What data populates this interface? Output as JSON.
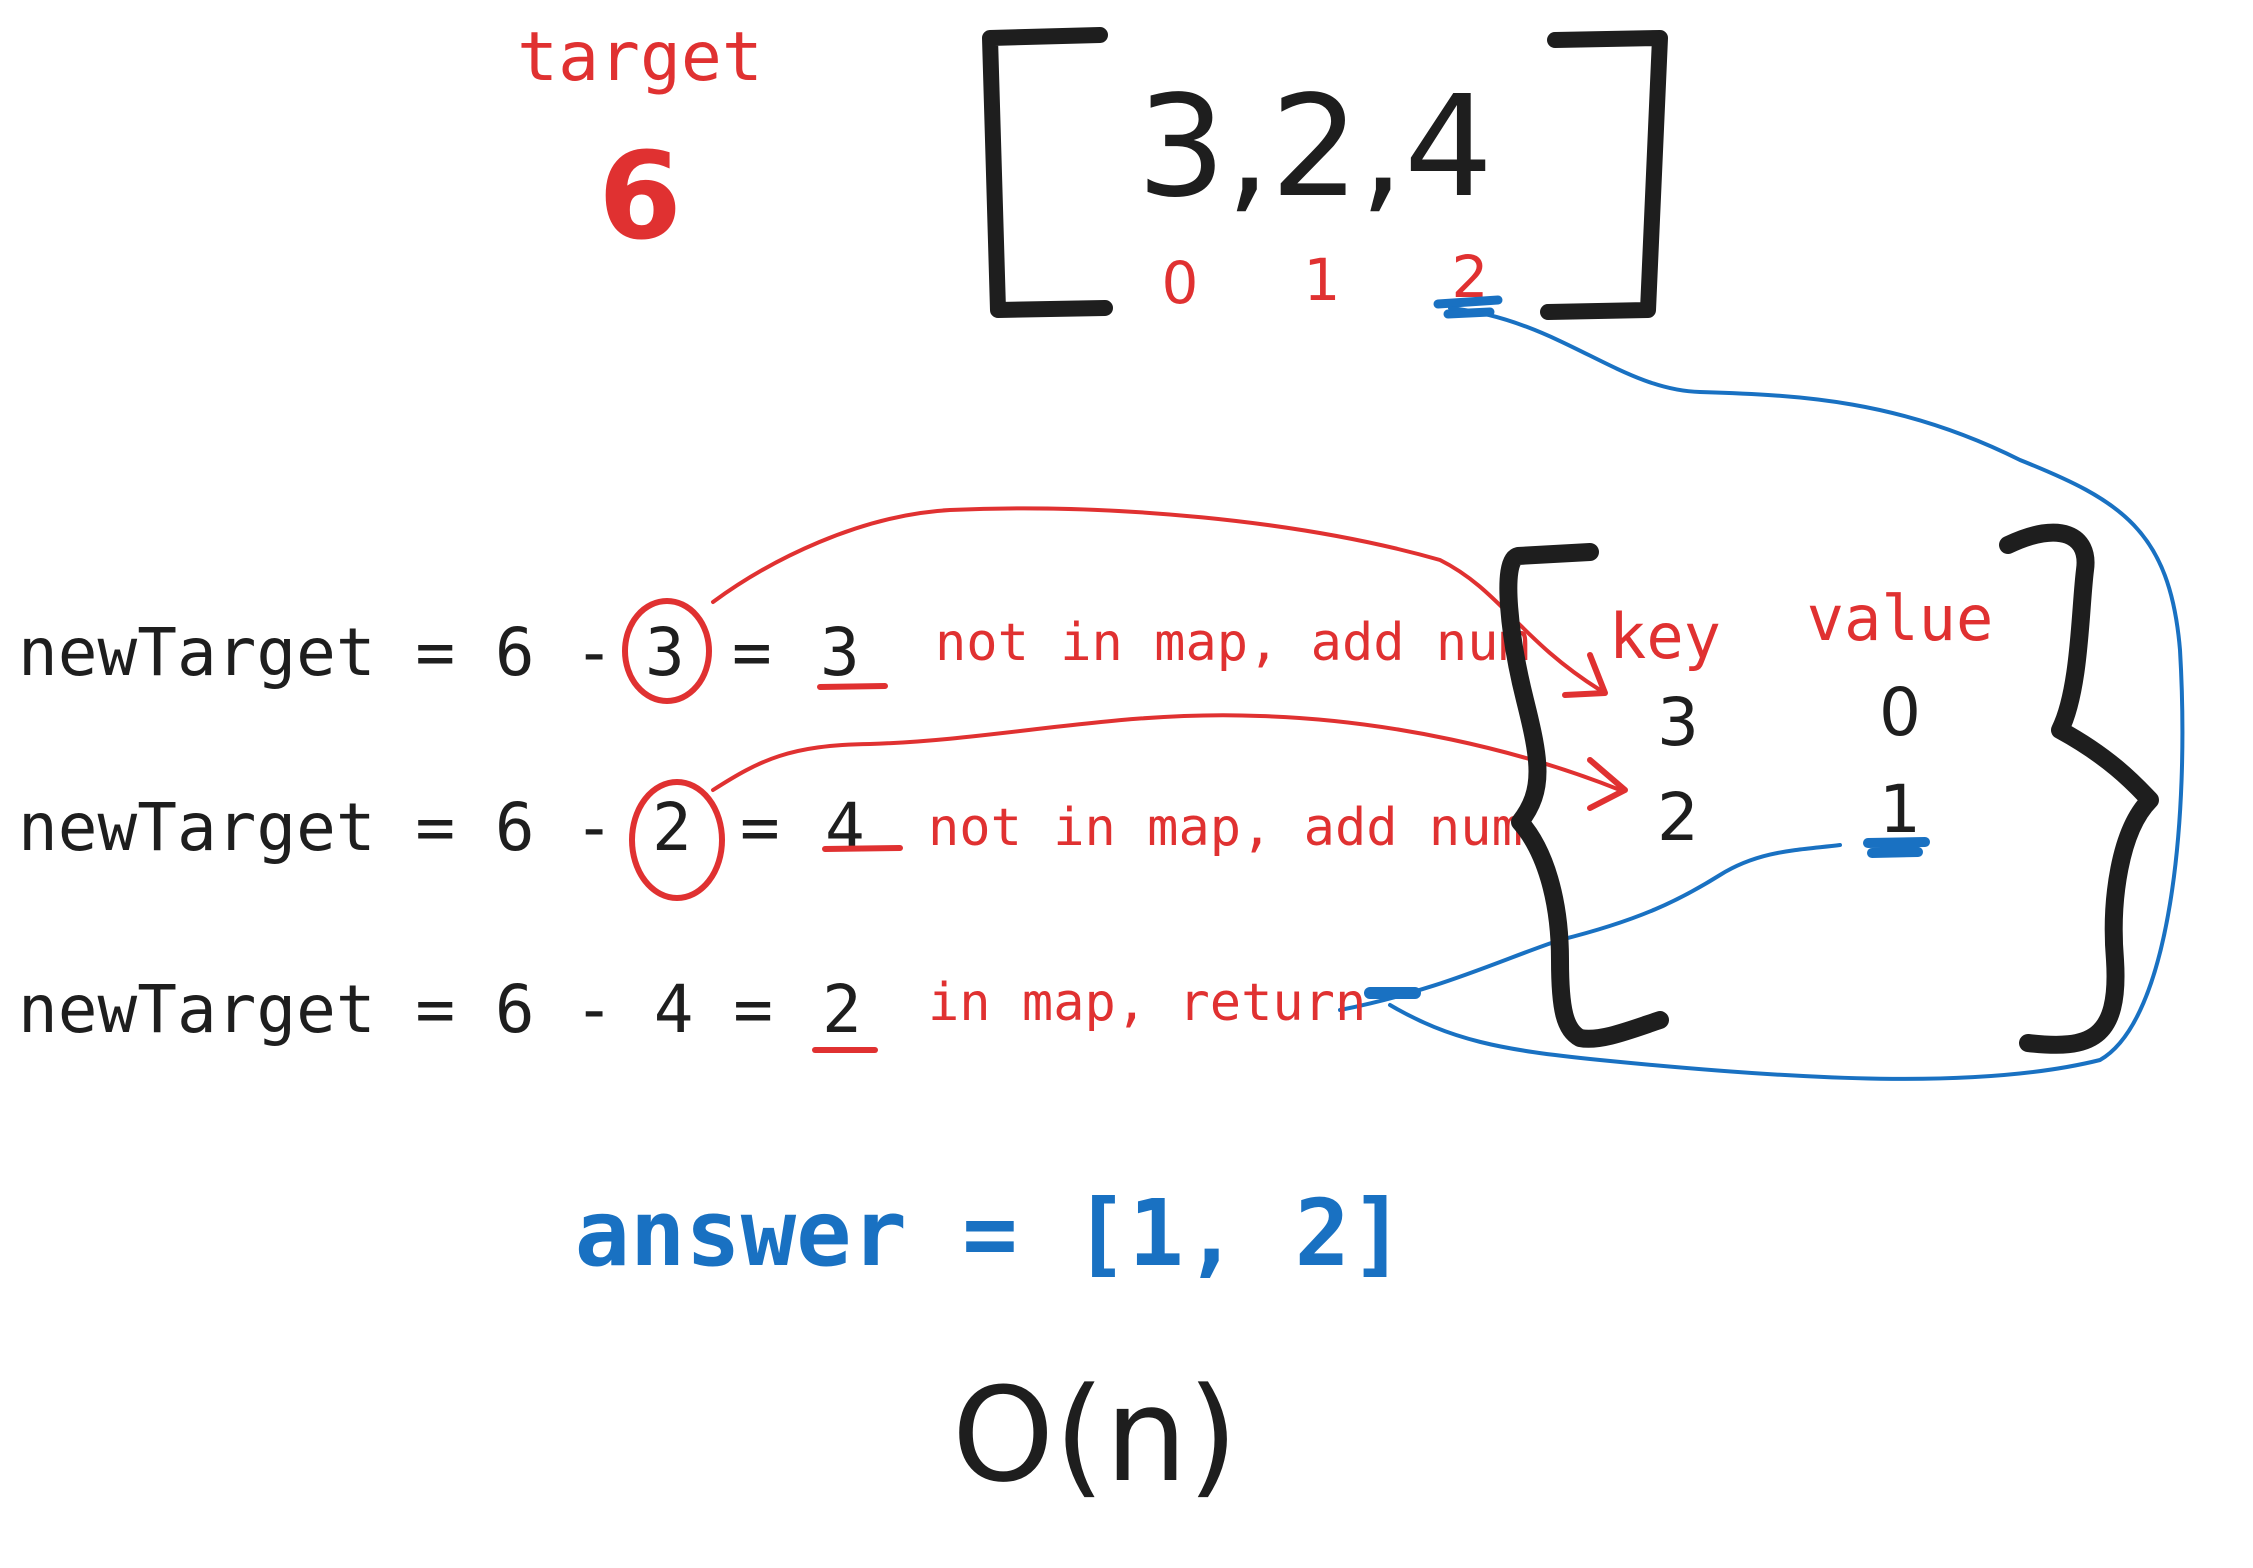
{
  "target": {
    "label": "target",
    "value": "6"
  },
  "array": {
    "values": [
      "3",
      "2",
      "4"
    ],
    "display": "3,2,4",
    "indices": [
      "0",
      "1",
      "2"
    ]
  },
  "steps": [
    {
      "prefix": "newTarget = 6 -",
      "num": "3",
      "eq": "=",
      "result": "3",
      "note": "not in map, add num"
    },
    {
      "prefix": "newTarget = 6 -",
      "num": "2",
      "eq": "=",
      "result": "4",
      "note": "not in map, add num"
    },
    {
      "prefix": "newTarget = 6 - 4 =",
      "num": "",
      "eq": "",
      "result": "2",
      "note": "in map, return"
    }
  ],
  "map": {
    "key_header": "key",
    "value_header": "value",
    "rows": [
      {
        "key": "3",
        "value": "0"
      },
      {
        "key": "2",
        "value": "1"
      }
    ]
  },
  "answer": "answer = [1, 2]",
  "complexity": "O(n)",
  "colors": {
    "ink": "#1e1e1e",
    "red": "#e03131",
    "blue": "#1971c2"
  }
}
